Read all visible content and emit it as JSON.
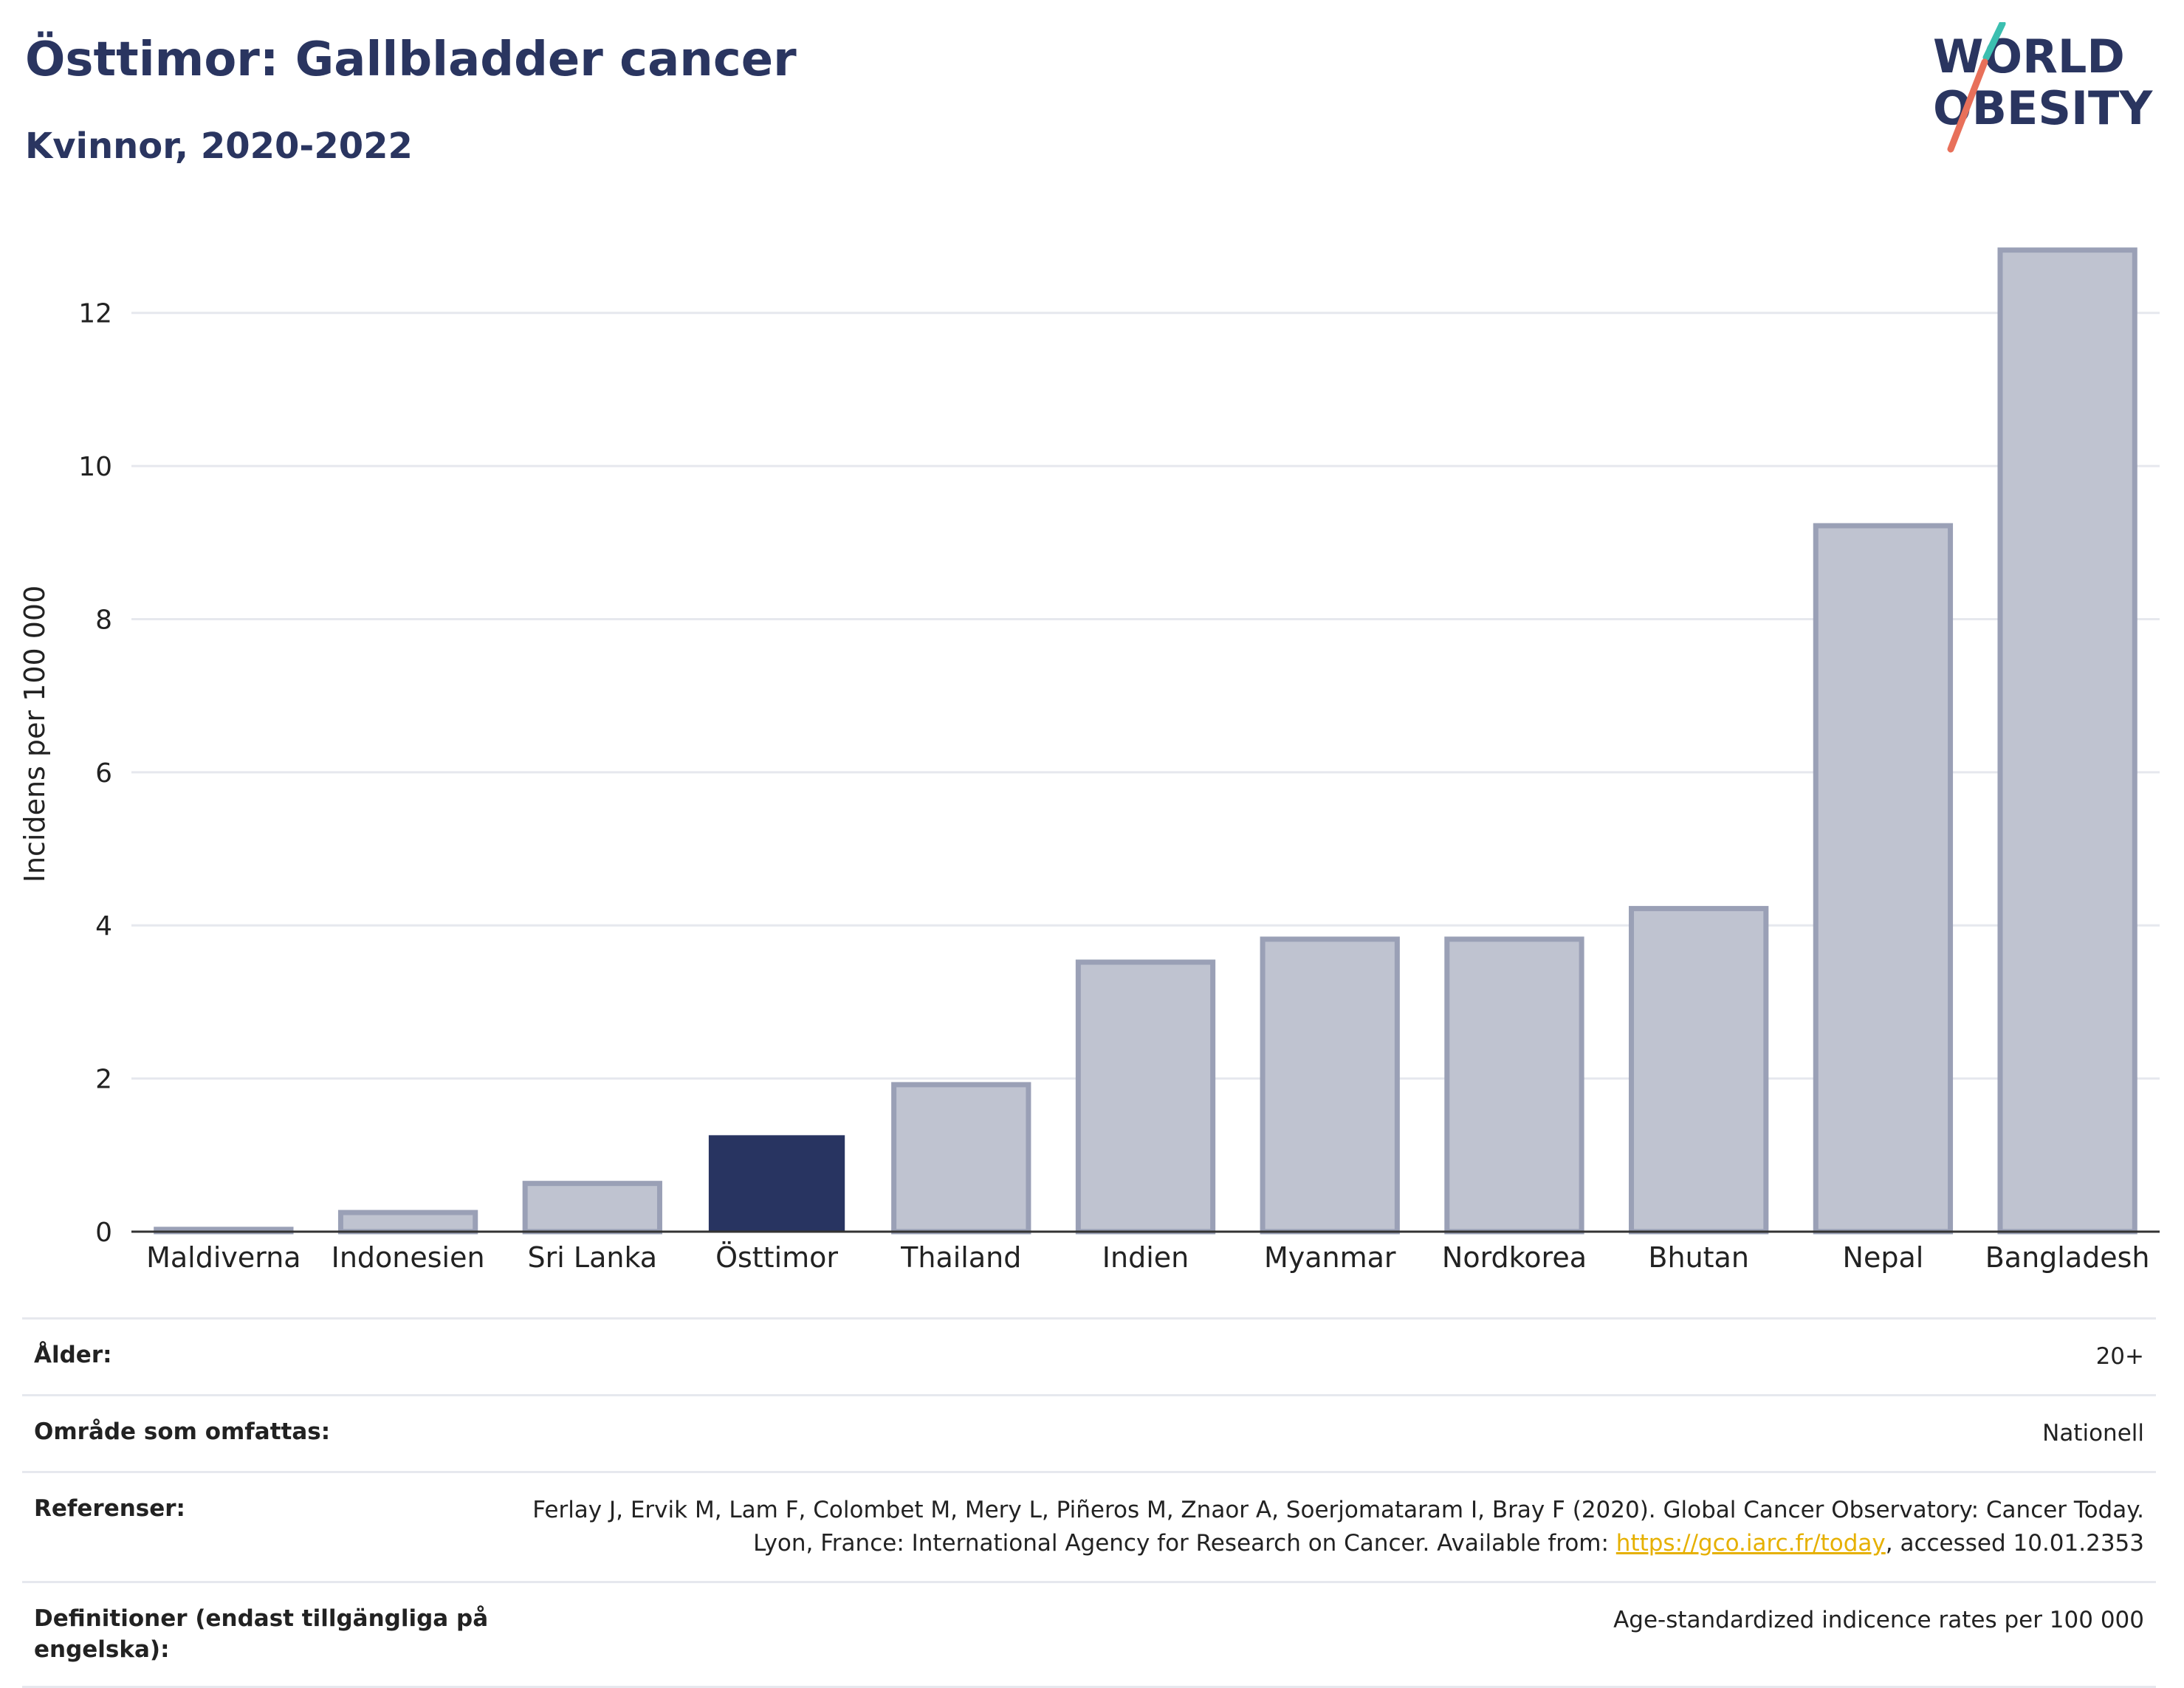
{
  "header": {
    "title": "Östtimor: Gallbladder cancer",
    "subtitle": "Kvinnor, 2020-2022"
  },
  "logo": {
    "line1": "WORLD",
    "line2": "OBESITY",
    "text_color": "#2a3560",
    "slash_colors": [
      "#3bbfb0",
      "#e8705a"
    ]
  },
  "colors": {
    "highlight": "#283461",
    "bar_fill": "#bfc3d0",
    "bar_stroke": "#9aa0b6",
    "axis": "#333333",
    "grid": "#e6e8ee"
  },
  "chart_data": {
    "type": "bar",
    "ylabel": "Incidens per 100 000",
    "xlabel": "",
    "ylim": [
      0,
      13
    ],
    "yticks": [
      0,
      2,
      4,
      6,
      8,
      10,
      12
    ],
    "grid": true,
    "highlight": "Östtimor",
    "categories": [
      "Maldiverna",
      "Indonesien",
      "Sri Lanka",
      "Östtimor",
      "Thailand",
      "Indien",
      "Myanmar",
      "Nordkorea",
      "Bhutan",
      "Nepal",
      "Bangladesh"
    ],
    "values": [
      0.03,
      0.25,
      0.63,
      1.25,
      1.92,
      3.52,
      3.82,
      3.82,
      4.22,
      9.22,
      12.82
    ]
  },
  "info": {
    "age_label": "Ålder:",
    "age_value": "20+",
    "area_label": "Område som omfattas:",
    "area_value": "Nationell",
    "refs_label": "Referenser:",
    "refs_text_1": "Ferlay J, Ervik M, Lam F, Colombet M, Mery L, Piñeros M, Znaor A, Soerjomataram I, Bray F (2020). Global Cancer Observatory: Cancer Today. Lyon, France: International Agency for Research on Cancer. Available from: ",
    "refs_link": "https://gco.iarc.fr/today",
    "refs_text_2": ", accessed 10.01.2353",
    "defs_label": "Definitioner (endast tillgängliga på engelska):",
    "defs_value": "Age-standardized indicence rates per 100 000"
  }
}
